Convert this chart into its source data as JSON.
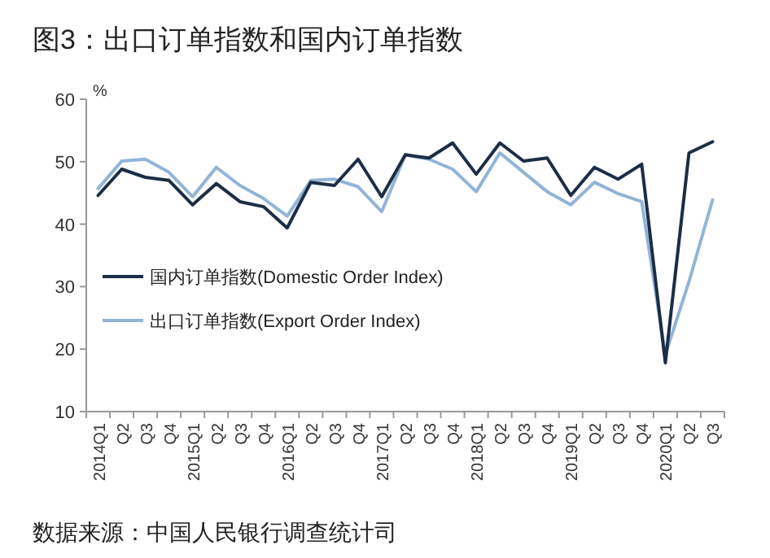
{
  "chart_data": {
    "type": "line",
    "title": "图3：出口订单指数和国内订单指数",
    "ylabel": "%",
    "annotations": [
      "数据来源：中国人民银行调查统计司"
    ],
    "categories": [
      "2014Q1",
      "Q2",
      "Q3",
      "Q4",
      "2015Q1",
      "Q2",
      "Q3",
      "Q4",
      "2016Q1",
      "Q2",
      "Q3",
      "Q4",
      "2017Q1",
      "Q2",
      "Q3",
      "Q4",
      "2018Q1",
      "Q2",
      "Q3",
      "Q4",
      "2019Q1",
      "Q2",
      "Q3",
      "Q4",
      "2020Q1",
      "Q2",
      "Q3"
    ],
    "series": [
      {
        "name": "国内订单指数(Domestic Order Index)",
        "color": "#1c2e45",
        "values": [
          44.6,
          48.8,
          47.5,
          47.0,
          43.1,
          46.5,
          43.6,
          42.8,
          39.4,
          46.7,
          46.2,
          50.4,
          44.4,
          51.1,
          50.6,
          53.0,
          48.0,
          53.0,
          50.1,
          50.6,
          44.6,
          49.1,
          47.2,
          49.6,
          17.8,
          51.4,
          53.2
        ]
      },
      {
        "name": "出口订单指数(Export Order Index)",
        "color": "#92b4d6",
        "values": [
          45.7,
          50.1,
          50.4,
          48.3,
          44.4,
          49.1,
          46.2,
          44.1,
          41.3,
          47.0,
          47.2,
          46.0,
          42.0,
          51.1,
          50.4,
          48.8,
          45.2,
          51.4,
          48.3,
          45.2,
          43.1,
          46.7,
          44.9,
          43.6,
          19.1,
          30.8,
          43.9
        ]
      }
    ],
    "ylim": [
      10,
      60
    ],
    "yticks": [
      10,
      20,
      30,
      40,
      50,
      60
    ],
    "legend": "left"
  }
}
